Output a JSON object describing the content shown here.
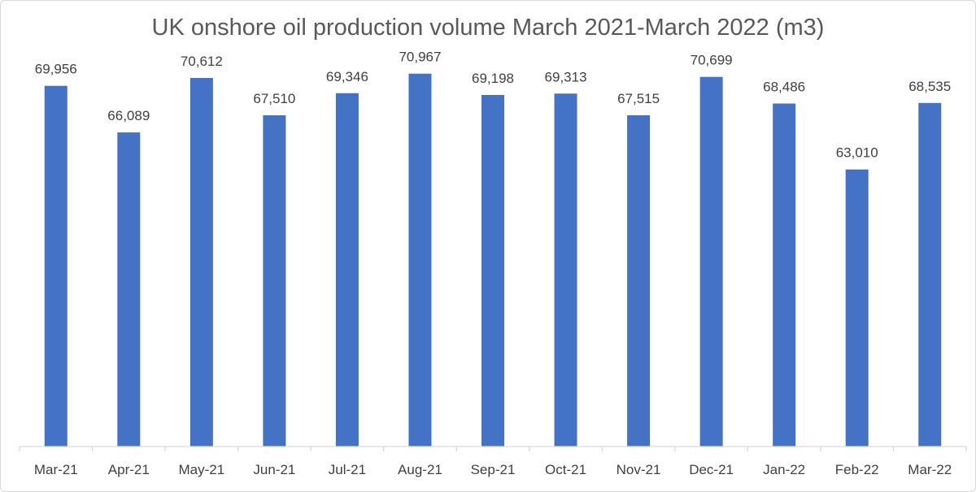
{
  "chart_data": {
    "type": "bar",
    "title": "UK onshore oil production volume March 2021-March 2022 (m3)",
    "xlabel": "",
    "ylabel": "",
    "categories": [
      "Mar-21",
      "Apr-21",
      "May-21",
      "Jun-21",
      "Jul-21",
      "Aug-21",
      "Sep-21",
      "Oct-21",
      "Nov-21",
      "Dec-21",
      "Jan-22",
      "Feb-22",
      "Mar-22"
    ],
    "values": [
      69956,
      66089,
      70612,
      67510,
      69346,
      70967,
      69198,
      69313,
      67515,
      70699,
      68486,
      63010,
      68535
    ],
    "value_labels": [
      "69,956",
      "66,089",
      "70,612",
      "67,510",
      "69,346",
      "70,967",
      "69,198",
      "69,313",
      "67,515",
      "70,699",
      "68,486",
      "63,010",
      "68,535"
    ],
    "ylim": [
      40000,
      72500
    ],
    "grid": false,
    "legend": "none",
    "colors": {
      "bar": "#4472c4",
      "axis": "#d9d9d9",
      "label_text": "#404040",
      "title_text": "#595959"
    }
  }
}
